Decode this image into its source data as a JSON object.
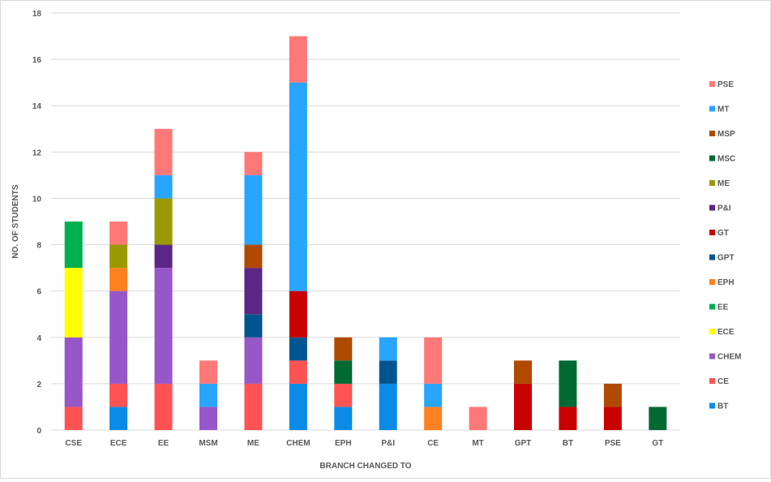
{
  "chart_data": {
    "type": "bar",
    "stacked": true,
    "title": "",
    "xlabel": "BRANCH CHANGED TO",
    "ylabel": "NO. OF STUDENTS",
    "ylim": [
      0,
      18
    ],
    "yticks": [
      0,
      2,
      4,
      6,
      8,
      10,
      12,
      14,
      16,
      18
    ],
    "grid": true,
    "legend_position": "right",
    "categories": [
      "CSE",
      "ECE",
      "EE",
      "MSM",
      "ME",
      "CHEM",
      "EPH",
      "P&I",
      "CE",
      "MT",
      "GPT",
      "BT",
      "PSE",
      "GT"
    ],
    "series": [
      {
        "name": "BT",
        "color": "#0a8be8",
        "values": [
          0,
          1,
          0,
          0,
          0,
          2,
          1,
          2,
          0,
          0,
          0,
          0,
          0,
          0
        ]
      },
      {
        "name": "CE",
        "color": "#ff5353",
        "values": [
          1,
          1,
          2,
          0,
          2,
          1,
          1,
          0,
          0,
          0,
          0,
          0,
          0,
          0
        ]
      },
      {
        "name": "CHEM",
        "color": "#9857c9",
        "values": [
          3,
          4,
          5,
          1,
          2,
          0,
          0,
          0,
          0,
          0,
          0,
          0,
          0,
          0
        ]
      },
      {
        "name": "ECE",
        "color": "#ffff00",
        "values": [
          3,
          0,
          0,
          0,
          0,
          0,
          0,
          0,
          0,
          0,
          0,
          0,
          0,
          0
        ]
      },
      {
        "name": "EE",
        "color": "#00b050",
        "values": [
          2,
          0,
          0,
          0,
          0,
          0,
          0,
          0,
          0,
          0,
          0,
          0,
          0,
          0
        ]
      },
      {
        "name": "EPH",
        "color": "#ff8020",
        "values": [
          0,
          1,
          0,
          0,
          0,
          0,
          0,
          0,
          1,
          0,
          0,
          0,
          0,
          0
        ]
      },
      {
        "name": "GPT",
        "color": "#005590",
        "values": [
          0,
          0,
          0,
          0,
          1,
          1,
          0,
          1,
          0,
          0,
          0,
          0,
          0,
          0
        ]
      },
      {
        "name": "GT",
        "color": "#c90000",
        "values": [
          0,
          0,
          0,
          0,
          0,
          2,
          0,
          0,
          0,
          0,
          2,
          1,
          1,
          0
        ]
      },
      {
        "name": "P&I",
        "color": "#5b2785",
        "values": [
          0,
          0,
          1,
          0,
          2,
          0,
          0,
          0,
          0,
          0,
          0,
          0,
          0,
          0
        ]
      },
      {
        "name": "ME",
        "color": "#9a9a00",
        "values": [
          0,
          1,
          2,
          0,
          0,
          0,
          0,
          0,
          0,
          0,
          0,
          0,
          0,
          0
        ]
      },
      {
        "name": "MSC",
        "color": "#006a33",
        "values": [
          0,
          0,
          0,
          0,
          0,
          0,
          1,
          0,
          0,
          0,
          0,
          2,
          0,
          1
        ]
      },
      {
        "name": "MSP",
        "color": "#b04a00",
        "values": [
          0,
          0,
          0,
          0,
          1,
          0,
          1,
          0,
          0,
          0,
          1,
          0,
          1,
          0
        ]
      },
      {
        "name": "MT",
        "color": "#28a5ff",
        "values": [
          0,
          0,
          1,
          1,
          3,
          9,
          0,
          1,
          1,
          0,
          0,
          0,
          0,
          0
        ]
      },
      {
        "name": "PSE",
        "color": "#ff7878",
        "values": [
          0,
          1,
          2,
          1,
          1,
          2,
          0,
          0,
          2,
          1,
          0,
          0,
          0,
          0
        ]
      }
    ]
  }
}
